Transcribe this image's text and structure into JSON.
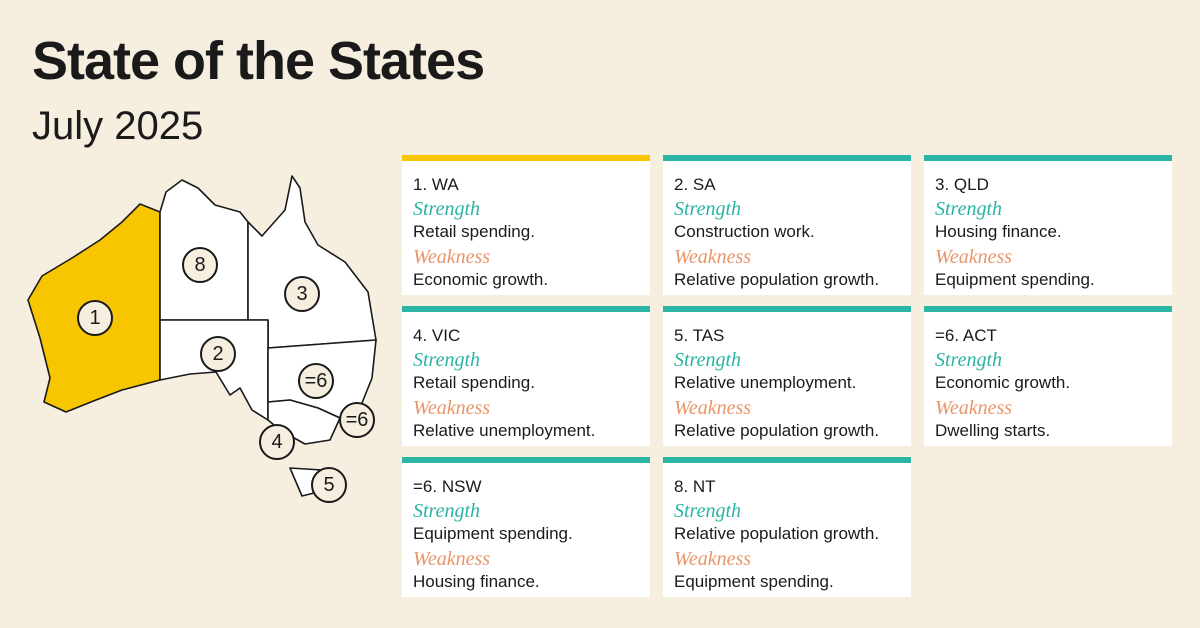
{
  "header": {
    "title": "State of the States",
    "subtitle": "July 2025"
  },
  "map": {
    "labels": [
      "1",
      "8",
      "3",
      "2",
      "=6",
      "=6",
      "4",
      "5"
    ]
  },
  "cards": [
    {
      "rank": "1. WA",
      "strength_label": "Strength",
      "strength": "Retail spending.",
      "weakness_label": "Weakness",
      "weakness": "Economic growth."
    },
    {
      "rank": "2. SA",
      "strength_label": "Strength",
      "strength": "Construction work.",
      "weakness_label": "Weakness",
      "weakness": "Relative population growth."
    },
    {
      "rank": "3. QLD",
      "strength_label": "Strength",
      "strength": "Housing finance.",
      "weakness_label": "Weakness",
      "weakness": "Equipment spending."
    },
    {
      "rank": "4. VIC",
      "strength_label": "Strength",
      "strength": "Retail spending.",
      "weakness_label": "Weakness",
      "weakness": "Relative unemployment."
    },
    {
      "rank": "5. TAS",
      "strength_label": "Strength",
      "strength": "Relative unemployment.",
      "weakness_label": "Weakness",
      "weakness": "Relative population growth."
    },
    {
      "rank": "=6. ACT",
      "strength_label": "Strength",
      "strength": "Economic growth.",
      "weakness_label": "Weakness",
      "weakness": "Dwelling starts."
    },
    {
      "rank": "=6. NSW",
      "strength_label": "Strength",
      "strength": "Equipment spending.",
      "weakness_label": "Weakness",
      "weakness": "Housing finance."
    },
    {
      "rank": "8. NT",
      "strength_label": "Strength",
      "strength": "Relative population growth.",
      "weakness_label": "Weakness",
      "weakness": "Equipment spending."
    }
  ]
}
